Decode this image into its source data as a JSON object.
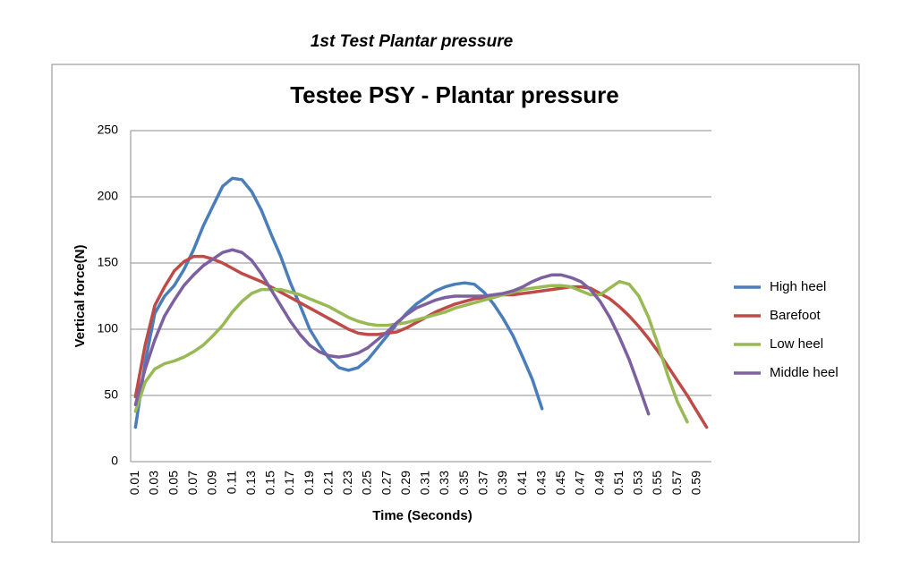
{
  "header": {
    "title": "1st Test  Plantar pressure"
  },
  "chart_data": {
    "type": "line",
    "title": "Testee PSY - Plantar pressure",
    "x_label": "Time (Seconds)",
    "y_label": "Vertical force(N)",
    "categories": [
      "0.01",
      null,
      "0.03",
      null,
      "0.05",
      null,
      "0.07",
      null,
      "0.09",
      null,
      "0.11",
      null,
      "0.13",
      null,
      "0.15",
      null,
      "0.17",
      null,
      "0.19",
      null,
      "0.21",
      null,
      "0.23",
      null,
      "0.25",
      null,
      "0.27",
      null,
      "0.29",
      null,
      "0.31",
      null,
      "0.33",
      null,
      "0.35",
      null,
      "0.37",
      null,
      "0.39",
      null,
      "0.41",
      null,
      "0.43",
      null,
      "0.45",
      null,
      "0.47",
      null,
      "0.49",
      null,
      "0.51",
      null,
      "0.53",
      null,
      "0.55",
      null,
      "0.57",
      null,
      "0.59",
      null
    ],
    "series": [
      {
        "name": "High heel",
        "color": "#4a7ebb",
        "values": [
          26,
          75,
          112,
          125,
          133,
          145,
          160,
          178,
          193,
          208,
          214,
          213,
          204,
          190,
          172,
          155,
          135,
          118,
          100,
          88,
          78,
          71,
          69,
          71,
          77,
          86,
          95,
          104,
          112,
          119,
          124,
          129,
          132,
          134,
          135,
          134,
          128,
          119,
          108,
          95,
          79,
          62,
          40,
          null,
          null,
          null,
          null,
          null,
          null,
          null,
          null,
          null,
          null,
          null,
          null,
          null,
          null,
          null,
          null,
          null
        ]
      },
      {
        "name": "Barefoot",
        "color": "#be4b48",
        "values": [
          49,
          88,
          118,
          132,
          144,
          151,
          155,
          155,
          153,
          150,
          146,
          142,
          139,
          136,
          132,
          128,
          124,
          120,
          116,
          112,
          108,
          104,
          100,
          97,
          96,
          96,
          97,
          98,
          101,
          105,
          109,
          113,
          116,
          119,
          121,
          123,
          124,
          125,
          126,
          126,
          127,
          128,
          129,
          130,
          131,
          132,
          132,
          131,
          127,
          123,
          117,
          110,
          102,
          93,
          83,
          72,
          61,
          50,
          38,
          26
        ]
      },
      {
        "name": "Low heel",
        "color": "#98b954",
        "values": [
          38,
          60,
          70,
          74,
          76,
          79,
          83,
          88,
          95,
          103,
          113,
          121,
          127,
          130,
          130,
          130,
          128,
          126,
          123,
          120,
          117,
          113,
          109,
          106,
          104,
          103,
          103,
          104,
          105,
          107,
          109,
          111,
          113,
          116,
          118,
          120,
          122,
          124,
          126,
          128,
          130,
          131,
          132,
          133,
          133,
          132,
          129,
          126,
          126,
          131,
          136,
          134,
          125,
          109,
          88,
          65,
          45,
          30,
          null,
          null
        ]
      },
      {
        "name": "Middle heel",
        "color": "#7d60a0",
        "values": [
          43,
          70,
          92,
          110,
          122,
          133,
          141,
          148,
          153,
          158,
          160,
          158,
          152,
          142,
          130,
          118,
          106,
          96,
          88,
          83,
          80,
          79,
          80,
          82,
          86,
          92,
          98,
          105,
          111,
          116,
          119,
          122,
          124,
          125,
          125,
          125,
          125,
          126,
          127,
          129,
          132,
          136,
          139,
          141,
          141,
          139,
          136,
          130,
          121,
          109,
          94,
          77,
          57,
          36,
          null,
          null,
          null,
          null,
          null,
          null
        ]
      }
    ],
    "ylim": [
      0,
      250
    ],
    "yticks": [
      0,
      50,
      100,
      150,
      200,
      250
    ],
    "grid": true,
    "legend": "right"
  }
}
